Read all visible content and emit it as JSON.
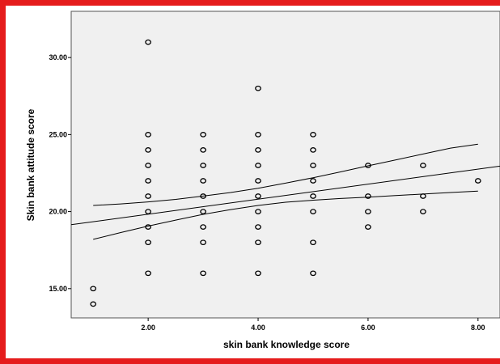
{
  "chart_data": {
    "type": "scatter",
    "xlabel": "skin bank knowledge score",
    "ylabel": "Skin bank attitude score",
    "xlim": [
      0.6,
      8.4
    ],
    "ylim": [
      13.1,
      33.0
    ],
    "xticks": [
      "2.00",
      "4.00",
      "6.00",
      "8.00"
    ],
    "xtick_values": [
      2,
      4,
      6,
      8
    ],
    "yticks": [
      "15.00",
      "20.00",
      "25.00",
      "30.00"
    ],
    "ytick_values": [
      15,
      20,
      25,
      30
    ],
    "grid": false,
    "plot_background": "#f0f0f0",
    "marker_color": "#000000",
    "frame_color": "#e51c1c",
    "points": [
      {
        "x": 1,
        "y": 15
      },
      {
        "x": 1,
        "y": 14
      },
      {
        "x": 2,
        "y": 31
      },
      {
        "x": 2,
        "y": 25
      },
      {
        "x": 2,
        "y": 24
      },
      {
        "x": 2,
        "y": 23
      },
      {
        "x": 2,
        "y": 22
      },
      {
        "x": 2,
        "y": 21
      },
      {
        "x": 2,
        "y": 20
      },
      {
        "x": 2,
        "y": 19
      },
      {
        "x": 2,
        "y": 18
      },
      {
        "x": 2,
        "y": 16
      },
      {
        "x": 3,
        "y": 25
      },
      {
        "x": 3,
        "y": 24
      },
      {
        "x": 3,
        "y": 23
      },
      {
        "x": 3,
        "y": 22
      },
      {
        "x": 3,
        "y": 21
      },
      {
        "x": 3,
        "y": 20
      },
      {
        "x": 3,
        "y": 19
      },
      {
        "x": 3,
        "y": 18
      },
      {
        "x": 3,
        "y": 16
      },
      {
        "x": 4,
        "y": 28
      },
      {
        "x": 4,
        "y": 25
      },
      {
        "x": 4,
        "y": 24
      },
      {
        "x": 4,
        "y": 23
      },
      {
        "x": 4,
        "y": 22
      },
      {
        "x": 4,
        "y": 21
      },
      {
        "x": 4,
        "y": 20
      },
      {
        "x": 4,
        "y": 19
      },
      {
        "x": 4,
        "y": 18
      },
      {
        "x": 4,
        "y": 16
      },
      {
        "x": 5,
        "y": 25
      },
      {
        "x": 5,
        "y": 24
      },
      {
        "x": 5,
        "y": 23
      },
      {
        "x": 5,
        "y": 22
      },
      {
        "x": 5,
        "y": 21
      },
      {
        "x": 5,
        "y": 20
      },
      {
        "x": 5,
        "y": 18
      },
      {
        "x": 5,
        "y": 16
      },
      {
        "x": 6,
        "y": 23
      },
      {
        "x": 6,
        "y": 21
      },
      {
        "x": 6,
        "y": 20
      },
      {
        "x": 6,
        "y": 19
      },
      {
        "x": 7,
        "y": 23
      },
      {
        "x": 7,
        "y": 21
      },
      {
        "x": 7,
        "y": 20
      },
      {
        "x": 8,
        "y": 22
      }
    ],
    "fit_line": {
      "x": [
        0.6,
        8.4
      ],
      "y": [
        19.15,
        22.95
      ]
    },
    "ci_upper": {
      "x": [
        1,
        1.5,
        2,
        2.5,
        3,
        3.5,
        4,
        4.5,
        5,
        5.5,
        6,
        6.5,
        7,
        7.5,
        8
      ],
      "y": [
        20.4,
        20.5,
        20.63,
        20.79,
        21.01,
        21.24,
        21.51,
        21.85,
        22.2,
        22.58,
        22.97,
        23.35,
        23.74,
        24.12,
        24.38
      ]
    },
    "ci_lower": {
      "x": [
        1,
        1.5,
        2,
        2.5,
        3,
        3.5,
        4,
        4.5,
        5,
        5.5,
        6,
        6.5,
        7,
        7.5,
        8
      ],
      "y": [
        18.2,
        18.64,
        19.06,
        19.45,
        19.82,
        20.13,
        20.4,
        20.61,
        20.74,
        20.85,
        20.94,
        21.04,
        21.14,
        21.24,
        21.33
      ]
    }
  }
}
